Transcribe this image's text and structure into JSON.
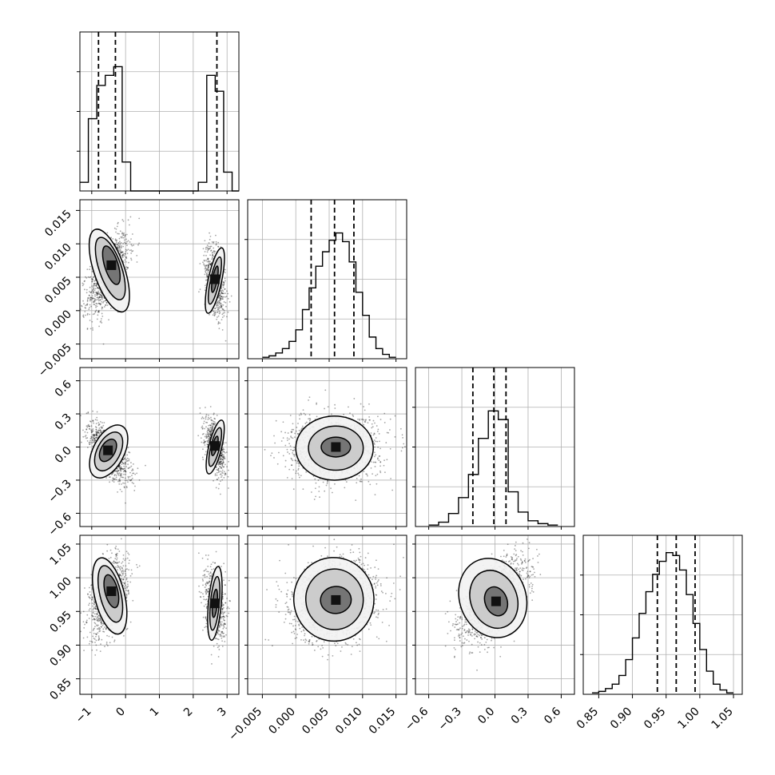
{
  "chart_data": {
    "type": "corner",
    "grid": true,
    "colors": {
      "line": "#000000",
      "grid": "#b0b0b0",
      "points": "#000000"
    },
    "params": [
      {
        "range": [
          -1.35,
          3.35
        ],
        "ticks": [
          -1,
          0,
          1,
          2,
          3
        ],
        "tick_labels": [
          "−1",
          "0",
          "1",
          "2",
          "3"
        ]
      },
      {
        "range": [
          -0.0072,
          0.0166
        ],
        "ticks": [
          -0.005,
          0.0,
          0.005,
          0.01,
          0.015
        ],
        "tick_labels": [
          "−0.005",
          "0.000",
          "0.005",
          "0.010",
          "0.015"
        ]
      },
      {
        "range": [
          -0.72,
          0.72
        ],
        "ticks": [
          -0.6,
          -0.3,
          0.0,
          0.3,
          0.6
        ],
        "tick_labels": [
          "−0.6",
          "−0.3",
          "0.0",
          "0.3",
          "0.6"
        ]
      },
      {
        "range": [
          0.827,
          1.063
        ],
        "ticks": [
          0.85,
          0.9,
          0.95,
          1.0,
          1.05
        ],
        "tick_labels": [
          "0.85",
          "0.90",
          "0.95",
          "1.00",
          "1.05"
        ]
      }
    ],
    "histograms": [
      {
        "param": 0,
        "type": "step-histogram",
        "bins": [
          [
            -1.35,
            -1.1,
            0.06
          ],
          [
            -1.1,
            -0.85,
            0.5
          ],
          [
            -0.85,
            -0.6,
            0.73
          ],
          [
            -0.6,
            -0.35,
            0.8
          ],
          [
            -0.35,
            -0.1,
            0.86
          ],
          [
            -0.1,
            0.15,
            0.2
          ],
          [
            0.15,
            2.15,
            0.0
          ],
          [
            2.15,
            2.4,
            0.06
          ],
          [
            2.4,
            2.65,
            0.8
          ],
          [
            2.65,
            2.9,
            0.69
          ],
          [
            2.9,
            3.15,
            0.13
          ],
          [
            3.15,
            3.35,
            0.0
          ]
        ],
        "quantiles": [
          -0.8,
          -0.3,
          2.7
        ]
      },
      {
        "param": 1,
        "type": "step-histogram",
        "bins": [
          [
            -0.005,
            -0.004,
            0.01
          ],
          [
            -0.004,
            -0.003,
            0.02
          ],
          [
            -0.003,
            -0.002,
            0.04
          ],
          [
            -0.002,
            -0.001,
            0.07
          ],
          [
            -0.001,
            0.0,
            0.12
          ],
          [
            0.0,
            0.001,
            0.2
          ],
          [
            0.001,
            0.002,
            0.34
          ],
          [
            0.002,
            0.003,
            0.49
          ],
          [
            0.003,
            0.004,
            0.64
          ],
          [
            0.004,
            0.005,
            0.74
          ],
          [
            0.005,
            0.006,
            0.82
          ],
          [
            0.006,
            0.007,
            0.87
          ],
          [
            0.007,
            0.008,
            0.81
          ],
          [
            0.008,
            0.009,
            0.67
          ],
          [
            0.009,
            0.01,
            0.46
          ],
          [
            0.01,
            0.011,
            0.3
          ],
          [
            0.011,
            0.012,
            0.15
          ],
          [
            0.012,
            0.013,
            0.07
          ],
          [
            0.013,
            0.014,
            0.03
          ],
          [
            0.014,
            0.015,
            0.01
          ]
        ],
        "quantiles": [
          0.0023,
          0.0058,
          0.0087
        ]
      },
      {
        "param": 2,
        "type": "step-histogram",
        "bins": [
          [
            -0.6,
            -0.51,
            0.01
          ],
          [
            -0.51,
            -0.42,
            0.03
          ],
          [
            -0.42,
            -0.33,
            0.09
          ],
          [
            -0.33,
            -0.24,
            0.2
          ],
          [
            -0.24,
            -0.15,
            0.36
          ],
          [
            -0.15,
            -0.06,
            0.61
          ],
          [
            -0.06,
            0.03,
            0.8
          ],
          [
            0.03,
            0.12,
            0.74
          ],
          [
            0.12,
            0.21,
            0.24
          ],
          [
            0.21,
            0.3,
            0.1
          ],
          [
            0.3,
            0.39,
            0.04
          ],
          [
            0.39,
            0.48,
            0.02
          ],
          [
            0.48,
            0.57,
            0.01
          ]
        ],
        "quantiles": [
          -0.2,
          -0.01,
          0.1
        ]
      },
      {
        "param": 3,
        "type": "step-histogram",
        "bins": [
          [
            0.84,
            0.85,
            0.01
          ],
          [
            0.85,
            0.86,
            0.02
          ],
          [
            0.86,
            0.87,
            0.04
          ],
          [
            0.87,
            0.88,
            0.07
          ],
          [
            0.88,
            0.89,
            0.13
          ],
          [
            0.89,
            0.9,
            0.24
          ],
          [
            0.9,
            0.91,
            0.39
          ],
          [
            0.91,
            0.92,
            0.56
          ],
          [
            0.92,
            0.93,
            0.71
          ],
          [
            0.93,
            0.94,
            0.83
          ],
          [
            0.94,
            0.95,
            0.92
          ],
          [
            0.95,
            0.96,
            0.98
          ],
          [
            0.96,
            0.97,
            0.96
          ],
          [
            0.97,
            0.98,
            0.86
          ],
          [
            0.98,
            0.99,
            0.69
          ],
          [
            0.99,
            1.0,
            0.49
          ],
          [
            1.0,
            1.01,
            0.31
          ],
          [
            1.01,
            1.02,
            0.16
          ],
          [
            1.02,
            1.03,
            0.07
          ],
          [
            1.03,
            1.04,
            0.03
          ],
          [
            1.04,
            1.05,
            0.01
          ]
        ],
        "quantiles": [
          0.937,
          0.965,
          0.993
        ]
      }
    ],
    "scatter_panels": [
      {
        "x": 0,
        "y": 1,
        "modes": [
          {
            "mean": [
              -0.5,
              0.0055
            ],
            "sd": [
              0.3,
              0.003
            ],
            "rho": 0.55,
            "weight": 0.62
          },
          {
            "mean": [
              2.65,
              0.0045
            ],
            "sd": [
              0.15,
              0.0026
            ],
            "rho": -0.4,
            "weight": 0.38
          }
        ],
        "contours": [
          {
            "cx": -0.48,
            "cy": 0.006,
            "rx": 0.45,
            "ry": 0.0065,
            "angle": 0.55,
            "level": 3
          },
          {
            "cx": -0.45,
            "cy": 0.0063,
            "rx": 0.33,
            "ry": 0.0049,
            "angle": 0.55,
            "level": 2
          },
          {
            "cx": -0.42,
            "cy": 0.0068,
            "rx": 0.2,
            "ry": 0.003,
            "angle": 0.5,
            "level": 1
          },
          {
            "cx": 2.64,
            "cy": 0.0045,
            "rx": 0.2,
            "ry": 0.005,
            "angle": -0.35,
            "level": 3
          },
          {
            "cx": 2.64,
            "cy": 0.0045,
            "rx": 0.13,
            "ry": 0.0036,
            "angle": -0.35,
            "level": 2
          },
          {
            "cx": 2.64,
            "cy": 0.0047,
            "rx": 0.07,
            "ry": 0.002,
            "angle": -0.3,
            "level": 1
          }
        ]
      },
      {
        "x": 0,
        "y": 2,
        "modes": [
          {
            "mean": [
              -0.5,
              -0.04
            ],
            "sd": [
              0.3,
              0.13
            ],
            "rho": -0.7,
            "weight": 0.62
          },
          {
            "mean": [
              2.65,
              0.0
            ],
            "sd": [
              0.15,
              0.12
            ],
            "rho": -0.5,
            "weight": 0.38
          }
        ],
        "contours": [
          {
            "cx": -0.5,
            "cy": -0.04,
            "rx": 0.46,
            "ry": 0.26,
            "angle": -0.8,
            "level": 3
          },
          {
            "cx": -0.5,
            "cy": -0.04,
            "rx": 0.34,
            "ry": 0.19,
            "angle": -0.8,
            "level": 2
          },
          {
            "cx": -0.52,
            "cy": -0.03,
            "rx": 0.21,
            "ry": 0.11,
            "angle": -0.85,
            "level": 1
          },
          {
            "cx": 2.65,
            "cy": 0.0,
            "rx": 0.19,
            "ry": 0.25,
            "angle": -0.4,
            "level": 3
          },
          {
            "cx": 2.65,
            "cy": 0.0,
            "rx": 0.13,
            "ry": 0.18,
            "angle": -0.4,
            "level": 2
          },
          {
            "cx": 2.64,
            "cy": 0.01,
            "rx": 0.07,
            "ry": 0.09,
            "angle": -0.4,
            "level": 1
          }
        ]
      },
      {
        "x": 0,
        "y": 3,
        "modes": [
          {
            "mean": [
              -0.5,
              0.972
            ],
            "sd": [
              0.28,
              0.028
            ],
            "rho": 0.4,
            "weight": 0.62
          },
          {
            "mean": [
              2.65,
              0.962
            ],
            "sd": [
              0.15,
              0.027
            ],
            "rho": -0.2,
            "weight": 0.38
          }
        ],
        "contours": [
          {
            "cx": -0.47,
            "cy": 0.973,
            "rx": 0.44,
            "ry": 0.058,
            "angle": 0.4,
            "level": 3
          },
          {
            "cx": -0.45,
            "cy": 0.976,
            "rx": 0.31,
            "ry": 0.043,
            "angle": 0.4,
            "level": 2
          },
          {
            "cx": -0.42,
            "cy": 0.98,
            "rx": 0.19,
            "ry": 0.025,
            "angle": 0.4,
            "level": 1
          },
          {
            "cx": 2.64,
            "cy": 0.962,
            "rx": 0.19,
            "ry": 0.055,
            "angle": -0.15,
            "level": 3
          },
          {
            "cx": 2.64,
            "cy": 0.962,
            "rx": 0.13,
            "ry": 0.04,
            "angle": -0.15,
            "level": 2
          },
          {
            "cx": 2.64,
            "cy": 0.962,
            "rx": 0.07,
            "ry": 0.021,
            "angle": -0.15,
            "level": 1
          }
        ]
      },
      {
        "x": 1,
        "y": 2,
        "modes": [
          {
            "mean": [
              0.0058,
              -0.01
            ],
            "sd": [
              0.0032,
              0.14
            ],
            "rho": 0.05,
            "weight": 1.0
          }
        ],
        "contours": [
          {
            "cx": 0.0058,
            "cy": -0.01,
            "rx": 0.0058,
            "ry": 0.29,
            "angle": 0.0,
            "level": 3
          },
          {
            "cx": 0.006,
            "cy": -0.01,
            "rx": 0.0041,
            "ry": 0.2,
            "angle": 0.0,
            "level": 2
          },
          {
            "cx": 0.006,
            "cy": 0.0,
            "rx": 0.0022,
            "ry": 0.09,
            "angle": 0.0,
            "level": 1
          }
        ]
      },
      {
        "x": 1,
        "y": 3,
        "modes": [
          {
            "mean": [
              0.0058,
              0.967
            ],
            "sd": [
              0.0032,
              0.029
            ],
            "rho": 0.15,
            "weight": 1.0
          }
        ],
        "contours": [
          {
            "cx": 0.0057,
            "cy": 0.968,
            "rx": 0.006,
            "ry": 0.062,
            "angle": 0.1,
            "level": 3
          },
          {
            "cx": 0.0058,
            "cy": 0.968,
            "rx": 0.0043,
            "ry": 0.045,
            "angle": 0.1,
            "level": 2
          },
          {
            "cx": 0.006,
            "cy": 0.967,
            "rx": 0.0023,
            "ry": 0.02,
            "angle": 0.15,
            "level": 1
          }
        ]
      },
      {
        "x": 2,
        "y": 3,
        "modes": [
          {
            "mean": [
              -0.01,
              0.968
            ],
            "sd": [
              0.14,
              0.029
            ],
            "rho": 0.6,
            "weight": 1.0
          }
        ],
        "contours": [
          {
            "cx": -0.02,
            "cy": 0.97,
            "rx": 0.3,
            "ry": 0.06,
            "angle": 0.6,
            "level": 3
          },
          {
            "cx": -0.01,
            "cy": 0.968,
            "rx": 0.21,
            "ry": 0.044,
            "angle": 0.6,
            "level": 2
          },
          {
            "cx": 0.01,
            "cy": 0.965,
            "rx": 0.1,
            "ry": 0.022,
            "angle": 0.6,
            "level": 1
          }
        ]
      }
    ]
  }
}
